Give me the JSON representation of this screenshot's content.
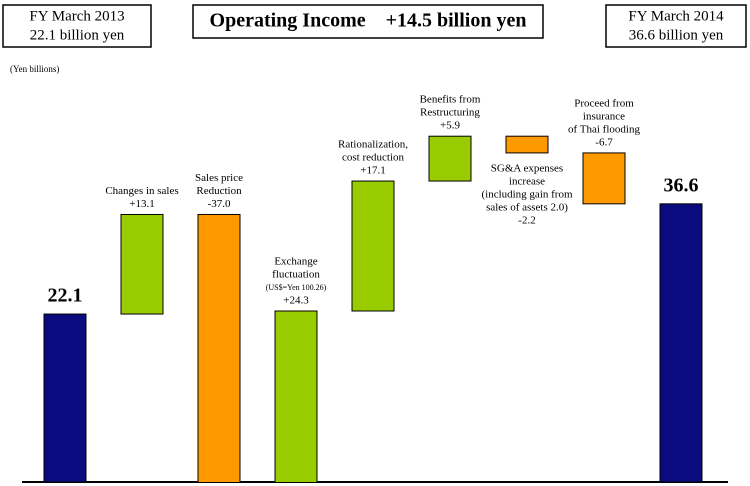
{
  "chart_data": {
    "type": "waterfall",
    "title": "Operating Income　+14.5 billion yen",
    "left_box": [
      "FY March 2013",
      "22.1 billion yen"
    ],
    "right_box": [
      "FY March 2014",
      "36.6 billion yen"
    ],
    "unit_label": "(Yen billions)",
    "categories": [
      null,
      [
        "Changes in sales"
      ],
      [
        "Sales price",
        "Reduction"
      ],
      [
        "Exchange",
        "fluctuation",
        "(US$=Yen 100.26)"
      ],
      [
        "Rationalization,",
        "cost reduction"
      ],
      [
        "Benefits from",
        "Restructuring"
      ],
      [
        "SG&A expenses",
        "increase",
        "(including gain from",
        "sales of assets 2.0)"
      ],
      [
        "Proceed from",
        "insurance",
        "of Thai flooding"
      ],
      null
    ],
    "measure": [
      "total",
      "relative",
      "relative",
      "relative",
      "relative",
      "relative",
      "relative",
      "relative",
      "total"
    ],
    "values": [
      22.1,
      13.1,
      -37.0,
      24.3,
      17.1,
      5.9,
      -2.2,
      -6.7,
      36.6
    ],
    "value_labels": [
      "22.1",
      "+13.1",
      "-37.0",
      "+24.3",
      "+17.1",
      "+5.9",
      "-2.2",
      "-6.7",
      "36.6"
    ],
    "colors": {
      "total": "#0b0b80",
      "increase": "#99cc00",
      "decrease": "#ff9900"
    }
  }
}
